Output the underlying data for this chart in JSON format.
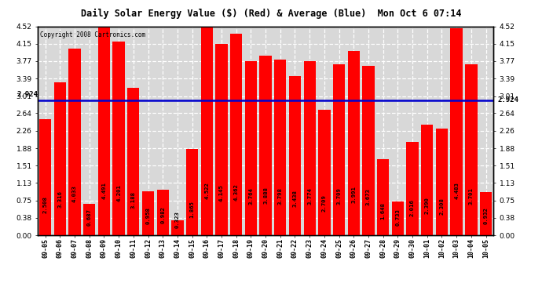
{
  "title": "Daily Solar Energy Value ($) (Red) & Average (Blue)  Mon Oct 6 07:14",
  "copyright": "Copyright 2008 Cartronics.com",
  "bar_color": "#ff0000",
  "average_color": "#0000cd",
  "average_value": 2.924,
  "bg_color": "#ffffff",
  "plot_bg_color": "#d8d8d8",
  "grid_color": "#ffffff",
  "ylim": [
    0,
    4.52
  ],
  "yticks": [
    0.0,
    0.38,
    0.75,
    1.13,
    1.51,
    1.88,
    2.26,
    2.64,
    3.01,
    3.39,
    3.77,
    4.15,
    4.52
  ],
  "categories": [
    "09-05",
    "09-06",
    "09-07",
    "09-08",
    "09-09",
    "09-10",
    "09-11",
    "09-12",
    "09-13",
    "09-14",
    "09-15",
    "09-16",
    "09-17",
    "09-18",
    "09-19",
    "09-20",
    "09-21",
    "09-22",
    "09-23",
    "09-24",
    "09-25",
    "09-26",
    "09-27",
    "09-28",
    "09-29",
    "09-30",
    "10-01",
    "10-02",
    "10-03",
    "10-04",
    "10-05"
  ],
  "values": [
    2.508,
    3.316,
    4.033,
    0.687,
    4.491,
    4.201,
    3.188,
    0.958,
    0.982,
    0.323,
    1.865,
    4.522,
    4.145,
    4.362,
    3.764,
    3.888,
    3.798,
    3.438,
    3.774,
    2.709,
    3.709,
    3.991,
    3.673,
    1.648,
    0.733,
    2.016,
    2.39,
    2.308,
    4.483,
    3.701,
    0.932
  ]
}
